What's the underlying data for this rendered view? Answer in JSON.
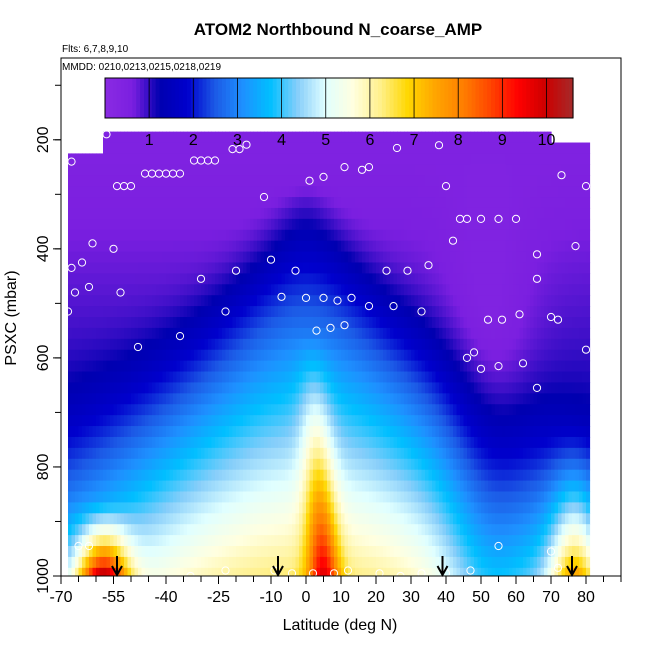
{
  "chart_data": {
    "type": "heatmap",
    "title": "ATOM2 Northbound N_coarse_AMP",
    "annotations": [
      "Flts: 6,7,8,9,10",
      "MMDD: 0210,0213,0215,0218,0219"
    ],
    "xlabel": "Latitude (deg N)",
    "ylabel": "PSXC (mbar)",
    "xlim": [
      -70,
      90
    ],
    "ylim": [
      1000,
      50
    ],
    "y_reversed": true,
    "x_ticks": [
      -70,
      -55,
      -40,
      -25,
      -10,
      0,
      10,
      20,
      30,
      40,
      50,
      60,
      70,
      80
    ],
    "y_ticks": [
      200,
      400,
      600,
      800,
      1000
    ],
    "colorbar": {
      "ticks": [
        1,
        2,
        3,
        4,
        5,
        6,
        7,
        8,
        9,
        10
      ],
      "range": [
        0,
        10.6
      ],
      "colors": [
        "#8a2be2",
        "#7b1fe0",
        "#0000b0",
        "#0000cd",
        "#1c5ae6",
        "#1e90ff",
        "#00bfff",
        "#87cefa",
        "#e0ffff",
        "#ffffe0",
        "#fff08c",
        "#ffd700",
        "#ffa500",
        "#ff7f00",
        "#ff4500",
        "#ff0000",
        "#cd0000",
        "#a52a2a"
      ]
    },
    "data_extent": {
      "lat": [
        -68,
        81
      ],
      "psxc": [
        185,
        1000
      ]
    },
    "flight_markers_lat": [
      -54,
      -8,
      39,
      76
    ],
    "observation_points": [
      {
        "lat": -67,
        "psxc": 240
      },
      {
        "lat": -66,
        "psxc": 215
      },
      {
        "lat": -63,
        "psxc": 200
      },
      {
        "lat": -59,
        "psxc": 190
      },
      {
        "lat": -57,
        "psxc": 190
      },
      {
        "lat": -54,
        "psxc": 285
      },
      {
        "lat": -52,
        "psxc": 285
      },
      {
        "lat": -50,
        "psxc": 285
      },
      {
        "lat": -46,
        "psxc": 262
      },
      {
        "lat": -44,
        "psxc": 262
      },
      {
        "lat": -42,
        "psxc": 262
      },
      {
        "lat": -40,
        "psxc": 262
      },
      {
        "lat": -38,
        "psxc": 262
      },
      {
        "lat": -36,
        "psxc": 262
      },
      {
        "lat": -32,
        "psxc": 238
      },
      {
        "lat": -30,
        "psxc": 238
      },
      {
        "lat": -28,
        "psxc": 238
      },
      {
        "lat": -26,
        "psxc": 238
      },
      {
        "lat": -21,
        "psxc": 217
      },
      {
        "lat": -19,
        "psxc": 217
      },
      {
        "lat": -17,
        "psxc": 209
      },
      {
        "lat": -12,
        "psxc": 305
      },
      {
        "lat": 1,
        "psxc": 275
      },
      {
        "lat": 5,
        "psxc": 268
      },
      {
        "lat": 11,
        "psxc": 250
      },
      {
        "lat": 16,
        "psxc": 255
      },
      {
        "lat": 18,
        "psxc": 250
      },
      {
        "lat": 26,
        "psxc": 215
      },
      {
        "lat": 38,
        "psxc": 210
      },
      {
        "lat": 40,
        "psxc": 285
      },
      {
        "lat": 44,
        "psxc": 345
      },
      {
        "lat": 46,
        "psxc": 345
      },
      {
        "lat": 50,
        "psxc": 345
      },
      {
        "lat": 55,
        "psxc": 345
      },
      {
        "lat": 60,
        "psxc": 345
      },
      {
        "lat": 73,
        "psxc": 265
      },
      {
        "lat": 80,
        "psxc": 285
      },
      {
        "lat": -67,
        "psxc": 435
      },
      {
        "lat": -64,
        "psxc": 425
      },
      {
        "lat": -61,
        "psxc": 390
      },
      {
        "lat": -55,
        "psxc": 400
      },
      {
        "lat": -53,
        "psxc": 480
      },
      {
        "lat": -66,
        "psxc": 480
      },
      {
        "lat": -62,
        "psxc": 470
      },
      {
        "lat": -68,
        "psxc": 515
      },
      {
        "lat": -48,
        "psxc": 580
      },
      {
        "lat": -36,
        "psxc": 560
      },
      {
        "lat": -30,
        "psxc": 455
      },
      {
        "lat": -23,
        "psxc": 515
      },
      {
        "lat": -20,
        "psxc": 440
      },
      {
        "lat": -10,
        "psxc": 420
      },
      {
        "lat": -7,
        "psxc": 488
      },
      {
        "lat": -3,
        "psxc": 440
      },
      {
        "lat": 0,
        "psxc": 490
      },
      {
        "lat": 3,
        "psxc": 550
      },
      {
        "lat": 5,
        "psxc": 490
      },
      {
        "lat": 7,
        "psxc": 545
      },
      {
        "lat": 9,
        "psxc": 495
      },
      {
        "lat": 11,
        "psxc": 540
      },
      {
        "lat": 13,
        "psxc": 490
      },
      {
        "lat": 18,
        "psxc": 505
      },
      {
        "lat": 23,
        "psxc": 440
      },
      {
        "lat": 25,
        "psxc": 505
      },
      {
        "lat": 29,
        "psxc": 440
      },
      {
        "lat": 33,
        "psxc": 515
      },
      {
        "lat": 35,
        "psxc": 430
      },
      {
        "lat": 42,
        "psxc": 385
      },
      {
        "lat": 46,
        "psxc": 600
      },
      {
        "lat": 48,
        "psxc": 590
      },
      {
        "lat": 50,
        "psxc": 620
      },
      {
        "lat": 52,
        "psxc": 530
      },
      {
        "lat": 56,
        "psxc": 530
      },
      {
        "lat": 55,
        "psxc": 615
      },
      {
        "lat": 61,
        "psxc": 520
      },
      {
        "lat": 62,
        "psxc": 610
      },
      {
        "lat": 66,
        "psxc": 455
      },
      {
        "lat": 66,
        "psxc": 410
      },
      {
        "lat": 70,
        "psxc": 525
      },
      {
        "lat": 72,
        "psxc": 530
      },
      {
        "lat": 77,
        "psxc": 395
      },
      {
        "lat": 80,
        "psxc": 585
      },
      {
        "lat": 66,
        "psxc": 655
      },
      {
        "lat": -65,
        "psxc": 945
      },
      {
        "lat": -62,
        "psxc": 945
      },
      {
        "lat": 55,
        "psxc": 945
      },
      {
        "lat": 70,
        "psxc": 955
      },
      {
        "lat": -46,
        "psxc": 1005
      },
      {
        "lat": -33,
        "psxc": 1000
      },
      {
        "lat": -23,
        "psxc": 990
      },
      {
        "lat": -9,
        "psxc": 990
      },
      {
        "lat": -4,
        "psxc": 995
      },
      {
        "lat": 2,
        "psxc": 995
      },
      {
        "lat": 8,
        "psxc": 995
      },
      {
        "lat": 12,
        "psxc": 990
      },
      {
        "lat": 21,
        "psxc": 995
      },
      {
        "lat": 27,
        "psxc": 1000
      },
      {
        "lat": 33,
        "psxc": 995
      },
      {
        "lat": 40,
        "psxc": 995
      },
      {
        "lat": 47,
        "psxc": 990
      },
      {
        "lat": 72,
        "psxc": 985
      }
    ]
  }
}
